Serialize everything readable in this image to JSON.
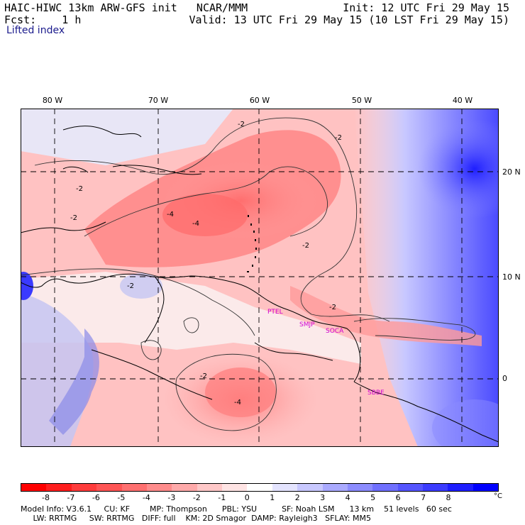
{
  "header": {
    "left_line1": "HAIC-HIWC 13km ARW-GFS init   NCAR/MMM",
    "left_line2": "Fcst:    1 h",
    "right_line1": "Init: 12 UTC Fri 29 May 15",
    "right_line2": "Valid: 13 UTC Fri 29 May 15 (10 LST Fri 29 May 15)",
    "field": "Lifted index"
  },
  "lon_labels": [
    "80 W",
    "70 W",
    "60 W",
    "50 W",
    "40 W"
  ],
  "lat_labels": [
    "20 N",
    "10 N",
    "0"
  ],
  "contour_labels": [
    "-2",
    "-2",
    "-2",
    "-2",
    "-4",
    "-4",
    "-2",
    "-2",
    "-2",
    "-2",
    "-4"
  ],
  "stations": [
    "PTEL",
    "SMJP",
    "SOCA",
    "SBBE"
  ],
  "colorbar": {
    "colors": [
      "#ff0000",
      "#ff1e1e",
      "#ff3c3c",
      "#ff5555",
      "#ff7070",
      "#ff8c8c",
      "#ffaaaa",
      "#ffc8c8",
      "#ffe4e4",
      "#ffffff",
      "#e4e4ff",
      "#c8c8ff",
      "#aaaaff",
      "#8c8cff",
      "#7070ff",
      "#5555ff",
      "#3c3cff",
      "#1e1eff",
      "#0000ff"
    ],
    "ticks": [
      "-8",
      "-7",
      "-6",
      "-5",
      "-4",
      "-3",
      "-2",
      "-1",
      "0",
      "1",
      "2",
      "3",
      "4",
      "5",
      "6",
      "7",
      "8"
    ],
    "unit": "°C"
  },
  "footer": {
    "line1": "Model Info: V3.6.1     CU: KF        MP: Thompson      PBL: YSU          SF: Noah LSM      13 km    51 levels   60 sec",
    "line2": "     LW: RRTMG     SW: RRTMG   DIFF: full    KM: 2D Smagor  DAMP: Rayleigh3   SFLAY: MM5"
  }
}
